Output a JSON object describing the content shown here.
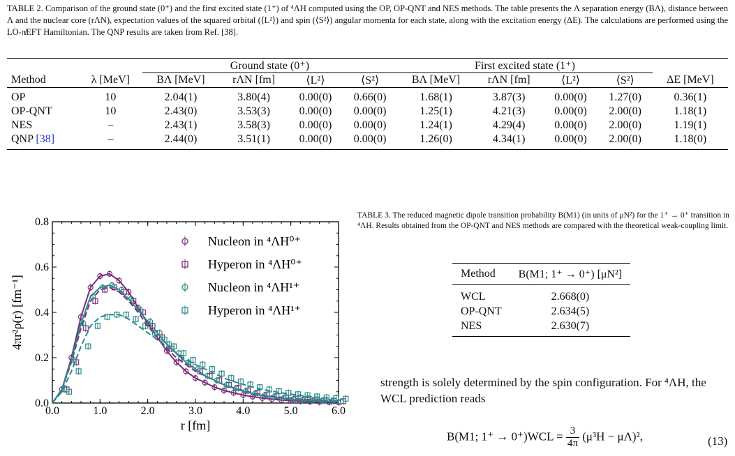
{
  "table2": {
    "caption": "TABLE 2. Comparison of the ground state (0⁺) and the first excited state (1⁺) of ⁴ΛH computed using the OP, OP-QNT and NES methods. The table presents the Λ separation energy (BΛ), distance between Λ and the nuclear core (rΛN), expectation values of the squared orbital (⟨L²⟩) and spin (⟨S²⟩) angular momenta for each state, along with the excitation energy (ΔE). The calculations are performed using the LO-π̸EFT Hamiltonian. The QNP results are taken from Ref. [38].",
    "group_ground": "Ground state (0⁺)",
    "group_excited": "First excited state (1⁺)",
    "headers": [
      "Method",
      "λ [MeV]",
      "BΛ [MeV]",
      "rΛN [fm]",
      "⟨L²⟩",
      "⟨S²⟩",
      "BΛ [MeV]",
      "rΛN [fm]",
      "⟨L²⟩",
      "⟨S²⟩",
      "ΔE [MeV]"
    ],
    "rows": [
      [
        "OP",
        "10",
        "2.04(1)",
        "3.80(4)",
        "0.00(0)",
        "0.66(0)",
        "1.68(1)",
        "3.87(3)",
        "0.00(0)",
        "1.27(0)",
        "0.36(1)"
      ],
      [
        "OP-QNT",
        "10",
        "2.43(0)",
        "3.53(3)",
        "0.00(0)",
        "0.00(0)",
        "1.25(1)",
        "4.21(3)",
        "0.00(0)",
        "2.00(0)",
        "1.18(1)"
      ],
      [
        "NES",
        "–",
        "2.43(1)",
        "3.58(3)",
        "0.00(0)",
        "0.00(0)",
        "1.24(1)",
        "4.29(4)",
        "0.00(0)",
        "2.00(0)",
        "1.19(1)"
      ],
      [
        "QNP",
        "–",
        "2.44(0)",
        "3.51(1)",
        "0.00(0)",
        "0.00(0)",
        "1.26(0)",
        "4.34(1)",
        "0.00(0)",
        "2.00(0)",
        "1.18(0)"
      ]
    ],
    "qnp_ref": "[38]"
  },
  "table3": {
    "caption": "TABLE 3. The reduced magnetic dipole transition probability B(M1) (in units of μN²) for the 1⁺ → 0⁺ transition in ⁴ΛH. Results obtained from the OP-QNT and NES methods are compared with the theoretical weak-coupling limit.",
    "headers": [
      "Method",
      "B(M1; 1⁺ → 0⁺) [μN²]"
    ],
    "rows": [
      [
        "WCL",
        "2.668(0)"
      ],
      [
        "OP-QNT",
        "2.634(5)"
      ],
      [
        "NES",
        "2.630(7)"
      ]
    ]
  },
  "body_text": "strength is solely determined by the spin configuration. For ⁴ΛH, the WCL prediction reads",
  "equation": {
    "lhs": "B(M1; 1⁺ → 0⁺)WCL =",
    "frac_num": "3",
    "frac_den": "4π",
    "rhs": "(μ³H − μΛ)²,",
    "number": "(13)"
  },
  "colors": {
    "purple": "#7b2d7b",
    "teal": "#2a8a8a",
    "link": "#2b35c8"
  },
  "chart_data": {
    "type": "scatter",
    "xlabel": "r [fm]",
    "ylabel": "4πr²ρ(r) [fm⁻¹]",
    "xlim": [
      0.0,
      6.0
    ],
    "ylim": [
      0.0,
      0.8
    ],
    "xticks": [
      "0.0",
      "1.0",
      "2.0",
      "3.0",
      "4.0",
      "5.0",
      "6.0"
    ],
    "yticks": [
      "0.0",
      "0.2",
      "0.4",
      "0.6",
      "0.8"
    ],
    "legend_position": "top-right",
    "series": [
      {
        "name": "Nucleon in ⁴ΛH⁰⁺",
        "marker": "circle",
        "color": "#7b2d7b",
        "peak_x": 1.2,
        "peak_y": 0.57,
        "x": [
          0.0,
          0.2,
          0.4,
          0.6,
          0.8,
          1.0,
          1.2,
          1.4,
          1.6,
          1.8,
          2.0,
          2.2,
          2.4,
          2.6,
          2.8,
          3.0,
          3.2,
          3.4,
          3.6,
          3.8,
          4.0,
          4.2,
          4.4,
          4.6,
          4.8,
          5.0,
          5.2,
          5.4,
          5.6,
          5.8,
          6.0
        ],
        "y": [
          0.0,
          0.06,
          0.2,
          0.38,
          0.51,
          0.56,
          0.57,
          0.54,
          0.49,
          0.42,
          0.35,
          0.29,
          0.23,
          0.18,
          0.14,
          0.11,
          0.09,
          0.07,
          0.055,
          0.045,
          0.035,
          0.028,
          0.022,
          0.017,
          0.013,
          0.01,
          0.008,
          0.006,
          0.005,
          0.004,
          0.003
        ]
      },
      {
        "name": "Hyperon in ⁴ΛH⁰⁺",
        "marker": "square",
        "color": "#7b2d7b",
        "peak_x": 1.3,
        "peak_y": 0.51,
        "x": [
          0.0,
          0.2,
          0.4,
          0.6,
          0.8,
          1.0,
          1.2,
          1.4,
          1.6,
          1.8,
          2.0,
          2.2,
          2.4,
          2.6,
          2.8,
          3.0,
          3.2,
          3.4,
          3.6,
          3.8,
          4.0,
          4.2,
          4.4,
          4.6,
          4.8,
          5.0,
          5.2,
          5.4,
          5.6,
          5.8,
          6.0
        ],
        "y": [
          0.0,
          0.06,
          0.18,
          0.33,
          0.45,
          0.5,
          0.51,
          0.49,
          0.45,
          0.4,
          0.34,
          0.29,
          0.24,
          0.2,
          0.17,
          0.14,
          0.12,
          0.1,
          0.08,
          0.067,
          0.055,
          0.045,
          0.037,
          0.03,
          0.025,
          0.02,
          0.017,
          0.014,
          0.011,
          0.009,
          0.008
        ]
      },
      {
        "name": "Nucleon in ⁴ΛH¹⁺",
        "marker": "circle",
        "color": "#2a8a8a",
        "peak_x": 1.3,
        "peak_y": 0.52,
        "x": [
          0.0,
          0.2,
          0.4,
          0.6,
          0.8,
          1.0,
          1.2,
          1.4,
          1.6,
          1.8,
          2.0,
          2.2,
          2.4,
          2.6,
          2.8,
          3.0,
          3.2,
          3.4,
          3.6,
          3.8,
          4.0,
          4.2,
          4.4,
          4.6,
          4.8,
          5.0,
          5.2,
          5.4,
          5.6,
          5.8,
          6.0
        ],
        "y": [
          0.0,
          0.06,
          0.19,
          0.35,
          0.47,
          0.51,
          0.52,
          0.5,
          0.46,
          0.41,
          0.36,
          0.31,
          0.26,
          0.22,
          0.18,
          0.15,
          0.12,
          0.1,
          0.08,
          0.065,
          0.052,
          0.042,
          0.034,
          0.027,
          0.022,
          0.017,
          0.014,
          0.011,
          0.009,
          0.007,
          0.006
        ]
      },
      {
        "name": "Hyperon in ⁴ΛH¹⁺",
        "marker": "square",
        "color": "#2a8a8a",
        "peak_x": 1.3,
        "peak_y": 0.39,
        "x": [
          0.0,
          0.2,
          0.4,
          0.6,
          0.8,
          1.0,
          1.2,
          1.4,
          1.6,
          1.8,
          2.0,
          2.2,
          2.4,
          2.6,
          2.8,
          3.0,
          3.2,
          3.4,
          3.6,
          3.8,
          4.0,
          4.2,
          4.4,
          4.6,
          4.8,
          5.0,
          5.2,
          5.4,
          5.6,
          5.8,
          6.0
        ],
        "y": [
          0.0,
          0.05,
          0.14,
          0.25,
          0.34,
          0.38,
          0.39,
          0.39,
          0.37,
          0.34,
          0.31,
          0.28,
          0.25,
          0.22,
          0.19,
          0.17,
          0.15,
          0.13,
          0.11,
          0.095,
          0.082,
          0.07,
          0.06,
          0.052,
          0.045,
          0.039,
          0.034,
          0.029,
          0.025,
          0.022,
          0.019
        ]
      }
    ]
  }
}
